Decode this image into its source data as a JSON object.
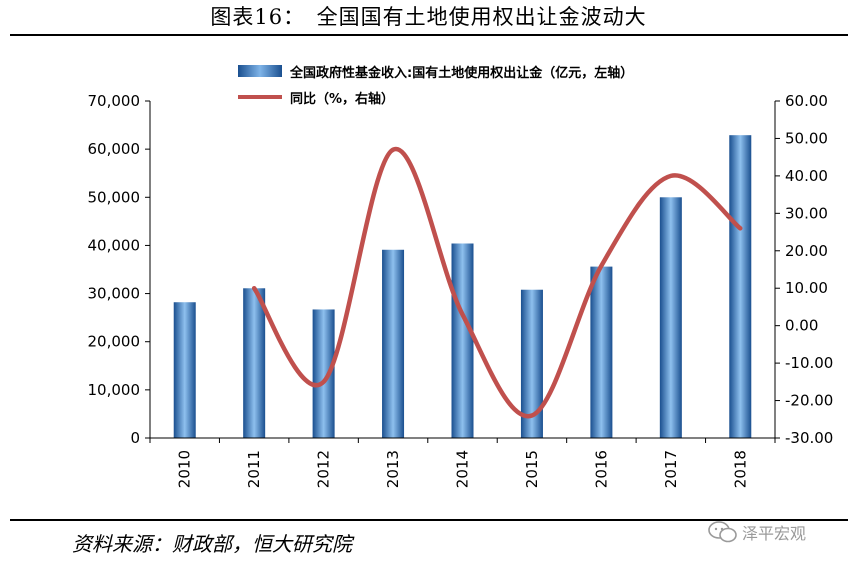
{
  "figure": {
    "title": "图表16：　全国国有土地使用权出让金波动大",
    "source": "资料来源：财政部，恒大研究院",
    "watermark": "泽平宏观",
    "watermark_icon": "wechat-icon"
  },
  "colors": {
    "bar": "#4a86c8",
    "line": "#c0504d"
  },
  "chart_data": {
    "type": "bar",
    "categories": [
      "2010",
      "2011",
      "2012",
      "2013",
      "2014",
      "2015",
      "2016",
      "2017",
      "2018"
    ],
    "series": [
      {
        "name": "全国政府性基金收入:国有土地使用权出让金（亿元，左轴）",
        "type": "bar",
        "axis": "left",
        "values": [
          28200,
          31100,
          26700,
          39100,
          40400,
          30800,
          35600,
          50000,
          62900
        ]
      },
      {
        "name": "同比（%，右轴）",
        "type": "line",
        "axis": "right",
        "values": [
          null,
          10.0,
          -15.0,
          47.0,
          3.0,
          -24.0,
          16.0,
          40.0,
          26.0
        ]
      }
    ],
    "left_axis": {
      "ylim": [
        0,
        70000
      ],
      "ticks": [
        0,
        10000,
        20000,
        30000,
        40000,
        50000,
        60000,
        70000
      ],
      "tick_labels": [
        "0",
        "10,000",
        "20,000",
        "30,000",
        "40,000",
        "50,000",
        "60,000",
        "70,000"
      ]
    },
    "right_axis": {
      "ylim": [
        -30,
        60
      ],
      "ticks": [
        -30,
        -20,
        -10,
        0,
        10,
        20,
        30,
        40,
        50,
        60
      ],
      "tick_labels": [
        "-30.00",
        "-20.00",
        "-10.00",
        "0.00",
        "10.00",
        "20.00",
        "30.00",
        "40.00",
        "50.00",
        "60.00"
      ]
    },
    "grid": false,
    "legend_position": "top-left"
  }
}
